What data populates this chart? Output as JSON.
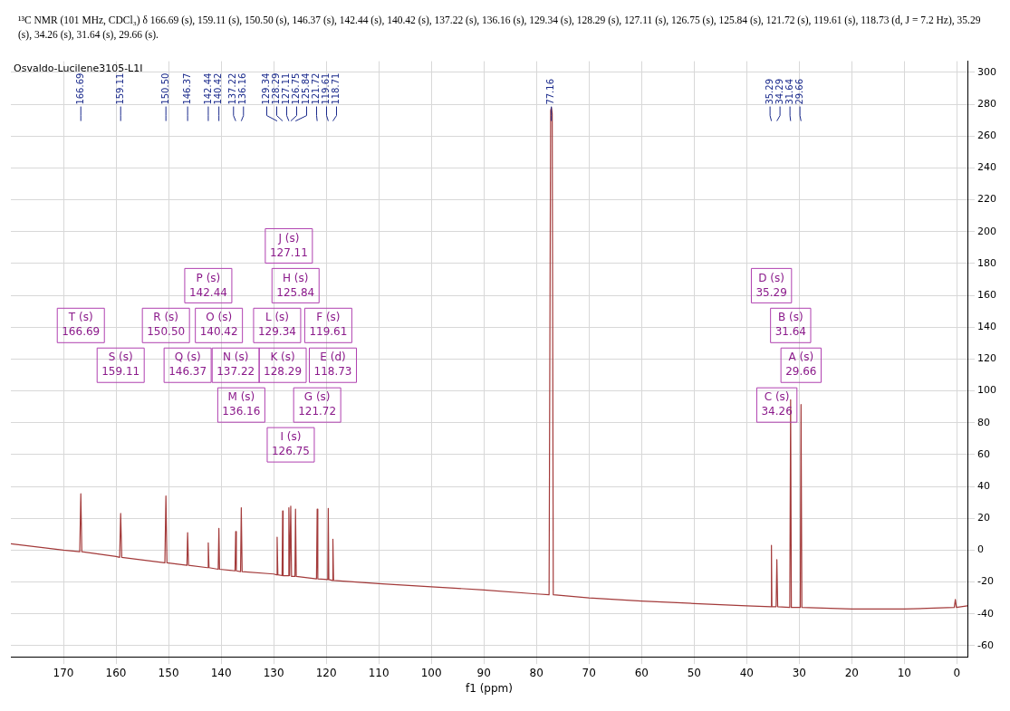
{
  "chart_data": {
    "type": "line",
    "title": "¹³C NMR (101 MHz, CDCl₃) δ 166.69 (s), 159.11 (s), 150.50 (s), 146.37 (s), 142.44 (s), 140.42 (s), 137.22 (s), 136.16 (s), 129.34 (s), 128.29 (s), 127.11 (s), 126.75 (s), 125.84 (s), 121.72 (s), 119.61 (s), 118.73 (d, J = 7.2 Hz), 35.29 (s), 34.26 (s), 31.64 (s), 29.66 (s).",
    "xlabel": "f1 (ppm)",
    "x": [
      180,
      170,
      166.9,
      166.69,
      166.5,
      160,
      159.3,
      159.11,
      158.9,
      150.7,
      150.5,
      150.3,
      146.5,
      146.37,
      146.2,
      142.6,
      142.44,
      142.3,
      140.55,
      140.42,
      140.3,
      137.35,
      137.22,
      137.1,
      136.3,
      136.16,
      136.0,
      130,
      129.45,
      129.34,
      129.2,
      128.4,
      128.29,
      128.2,
      127.2,
      127.11,
      126.95,
      126.75,
      126.6,
      125.95,
      125.84,
      125.7,
      121.85,
      121.72,
      121.6,
      119.7,
      119.61,
      119.5,
      118.8,
      118.73,
      118.6,
      110,
      100,
      90,
      80,
      77.6,
      77.3,
      77.16,
      77.0,
      76.8,
      70,
      60,
      50,
      40,
      35.4,
      35.29,
      35.2,
      34.4,
      34.26,
      34.1,
      31.8,
      31.64,
      31.5,
      29.8,
      29.66,
      29.5,
      20,
      10,
      0.5,
      0.3,
      0.1,
      -2
    ],
    "series": [
      {
        "color": "#a33a3a",
        "values": [
          4,
          0,
          -1,
          35.4,
          -1,
          -4,
          -4.5,
          23,
          -4.5,
          -8,
          34,
          -8,
          -9.5,
          11,
          -9.5,
          -11,
          4.6,
          -11,
          -12,
          13.7,
          -12,
          -13,
          11.7,
          -13,
          -13.5,
          26.6,
          -13.5,
          -15,
          -15.5,
          8.2,
          -15.5,
          -16,
          24.6,
          -16,
          -16,
          26.6,
          -16,
          27.6,
          -16.5,
          -16.5,
          25.7,
          -16.5,
          -18,
          25.7,
          -18,
          -18.5,
          26.2,
          -18.5,
          -19,
          6.9,
          -19,
          -21,
          -23,
          -25,
          -27.5,
          -28,
          276,
          278,
          274,
          -28,
          -30,
          -32,
          -33.5,
          -35,
          -35.5,
          3,
          -35.5,
          -35.5,
          -6,
          -35.5,
          -36,
          94.5,
          -36,
          -36,
          91.4,
          -36,
          -37,
          -37,
          -36,
          -31,
          -36,
          -35
        ]
      }
    ],
    "xlim": [
      180,
      -2
    ],
    "xticks": [
      170,
      160,
      150,
      140,
      130,
      120,
      110,
      100,
      90,
      80,
      70,
      60,
      50,
      40,
      30,
      20,
      10,
      0
    ],
    "ylim": [
      -67,
      307
    ],
    "yticks": [
      -60,
      -40,
      -20,
      0,
      20,
      40,
      60,
      80,
      100,
      120,
      140,
      160,
      180,
      200,
      220,
      240,
      260,
      280,
      300
    ],
    "grid": true,
    "legend": false,
    "marker": "none",
    "line_style": "solid",
    "annotations": [
      "Osvaldo-Lucilene3105-L1I",
      "166.69",
      "159.11",
      "150.50",
      "146.37",
      "142.44",
      "140.42",
      "137.22",
      "136.16",
      "129.34",
      "128.29",
      "127.11",
      "126.75",
      "125.84",
      "121.72",
      "119.61",
      "118.71",
      "77.16",
      "35.29",
      "34.29",
      "31.64",
      "29.66",
      "T (s)\n166.69",
      "S (s)\n159.11",
      "R (s)\n150.50",
      "Q (s)\n146.37",
      "P (s)\n142.44",
      "O (s)\n140.42",
      "N (s)\n137.22",
      "M (s)\n136.16",
      "L (s)\n129.34",
      "K (s)\n128.29",
      "J (s)\n127.11",
      "I (s)\n126.75",
      "H (s)\n125.84",
      "G (s)\n121.72",
      "F (s)\n119.61",
      "E (d)\n118.73",
      "D (s)\n35.29",
      "C (s)\n34.26",
      "B (s)\n31.64",
      "A (s)\n29.66"
    ]
  }
}
